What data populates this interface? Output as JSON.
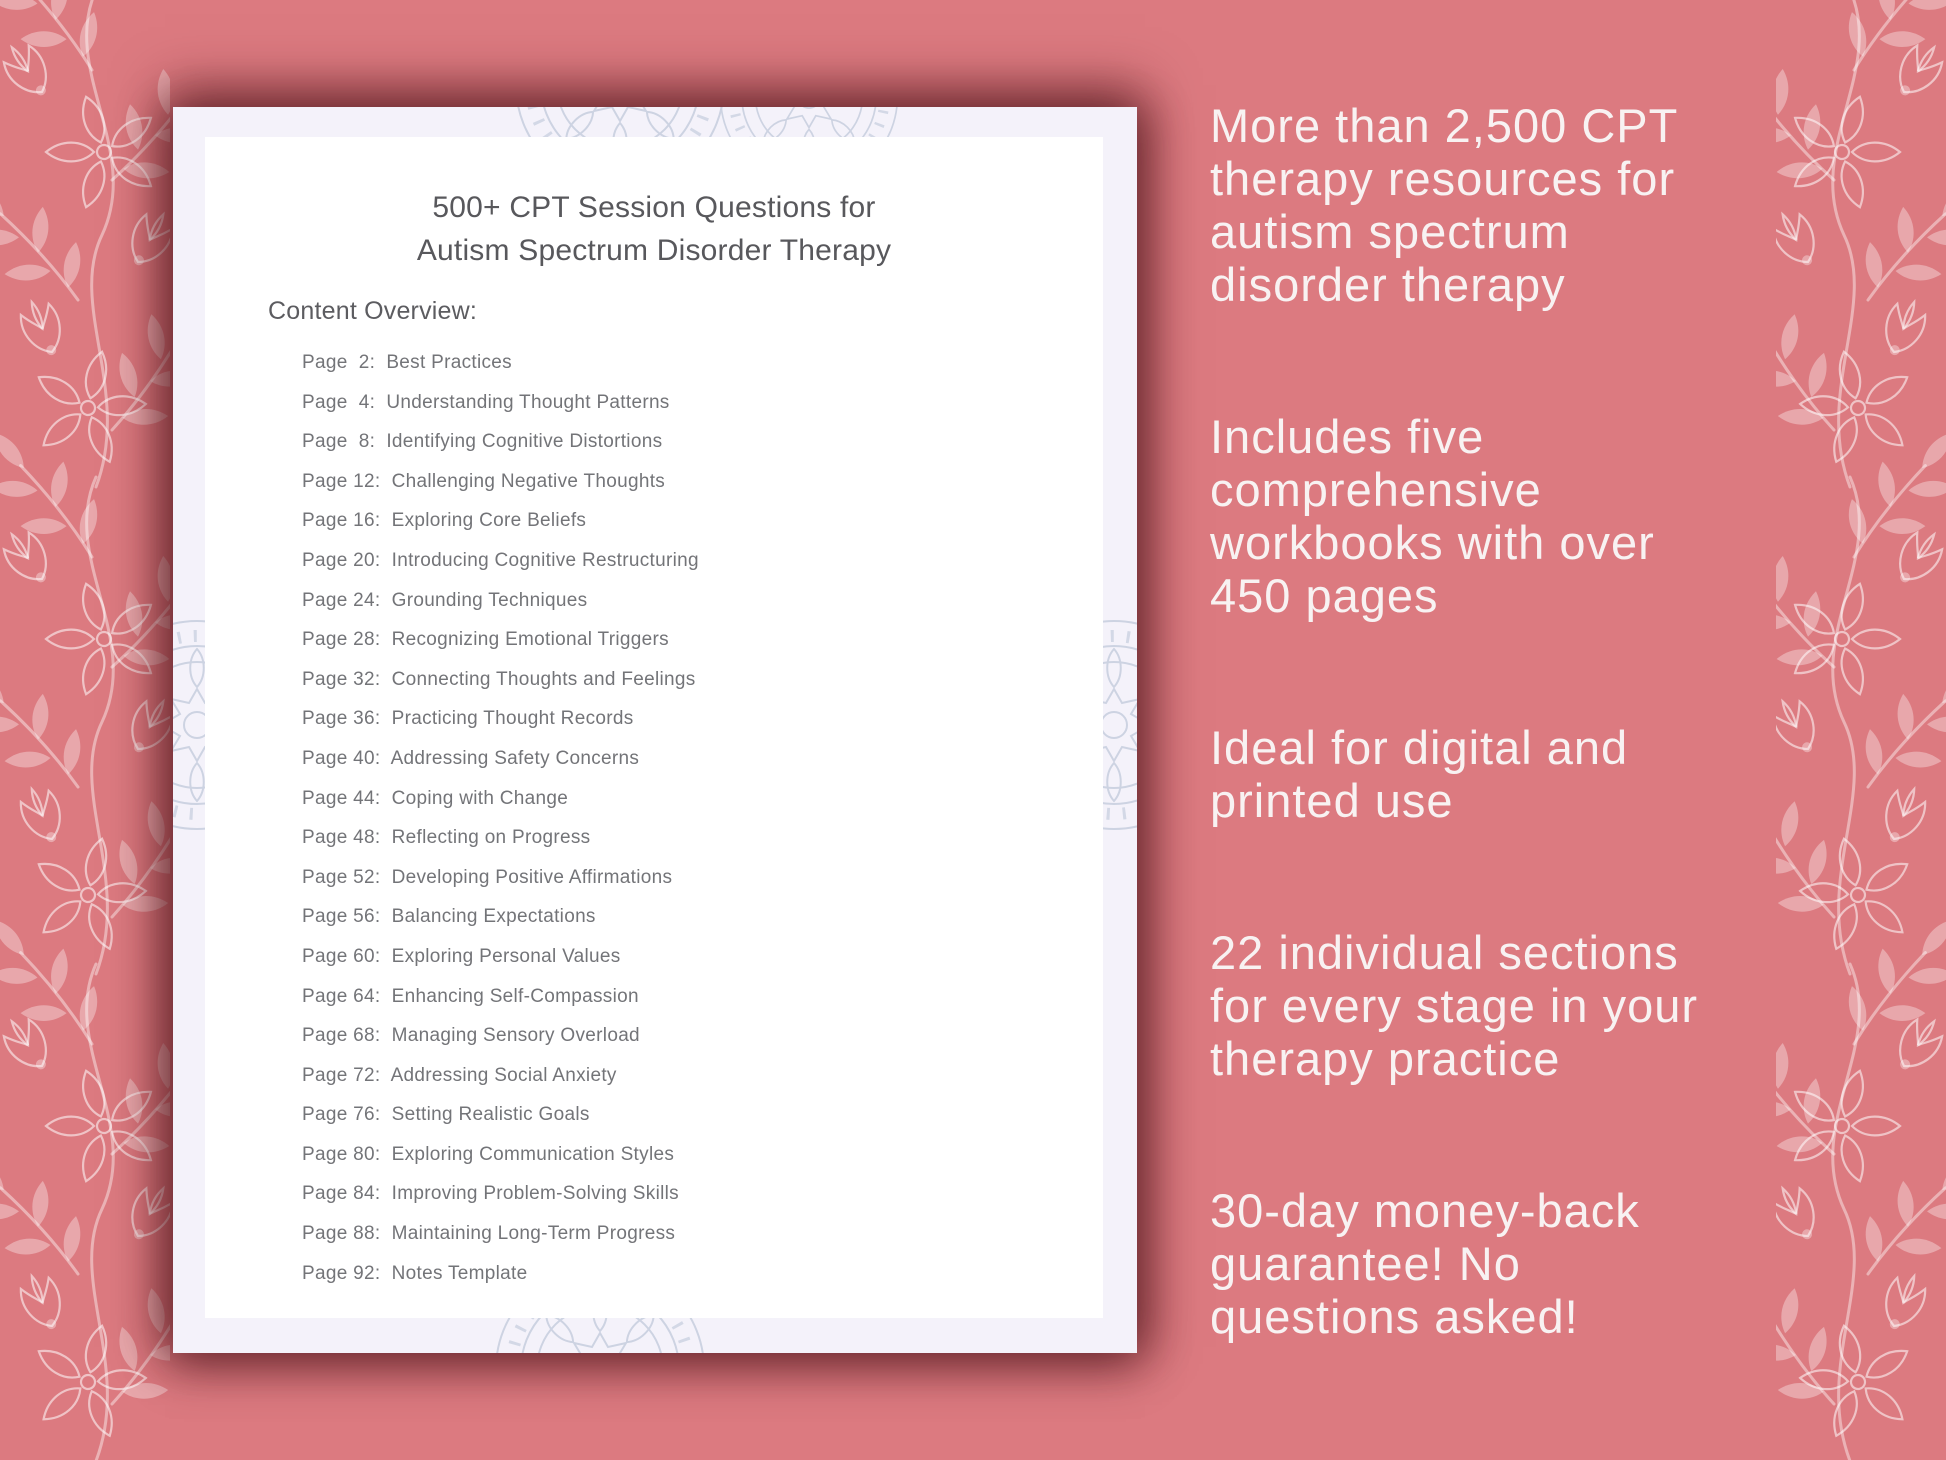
{
  "document": {
    "title": "500+ CPT Session Questions for\nAutism Spectrum Disorder Therapy",
    "overview_label": "Content Overview:",
    "toc_items": [
      "Page  2:  Best Practices",
      "Page  4:  Understanding Thought Patterns",
      "Page  8:  Identifying Cognitive Distortions",
      "Page 12:  Challenging Negative Thoughts",
      "Page 16:  Exploring Core Beliefs",
      "Page 20:  Introducing Cognitive Restructuring",
      "Page 24:  Grounding Techniques",
      "Page 28:  Recognizing Emotional Triggers",
      "Page 32:  Connecting Thoughts and Feelings",
      "Page 36:  Practicing Thought Records",
      "Page 40:  Addressing Safety Concerns",
      "Page 44:  Coping with Change",
      "Page 48:  Reflecting on Progress",
      "Page 52:  Developing Positive Affirmations",
      "Page 56:  Balancing Expectations",
      "Page 60:  Exploring Personal Values",
      "Page 64:  Enhancing Self-Compassion",
      "Page 68:  Managing Sensory Overload",
      "Page 72:  Addressing Social Anxiety",
      "Page 76:  Setting Realistic Goals",
      "Page 80:  Exploring Communication Styles",
      "Page 84:  Improving Problem-Solving Skills",
      "Page 88:  Maintaining Long-Term Progress",
      "Page 92:  Notes Template"
    ]
  },
  "marketing": {
    "paragraphs": [
      "More than 2,500 CPT\ntherapy resources for\nautism spectrum\ndisorder therapy",
      "Includes five\ncomprehensive\nworkbooks with over\n450 pages",
      "Ideal for digital and\nprinted use",
      "22 individual sections\nfor every stage in your\ntherapy practice",
      "30-day money-back\nguarantee! No\nquestions asked!"
    ]
  },
  "colors": {
    "background": "#dc7a80",
    "card_background": "#f4f2fa",
    "page_background": "#ffffff",
    "title_text": "#58585c",
    "body_text": "#737478",
    "marketing_text": "#f8f2f2",
    "mandala_line": "#cdd3e2",
    "floral_overlay": "rgba(255,255,255,0.34)"
  },
  "decor": {
    "left_border": "floral-vine-pattern",
    "right_border": "floral-vine-pattern",
    "card_pattern": "mandala-lace-pattern"
  }
}
